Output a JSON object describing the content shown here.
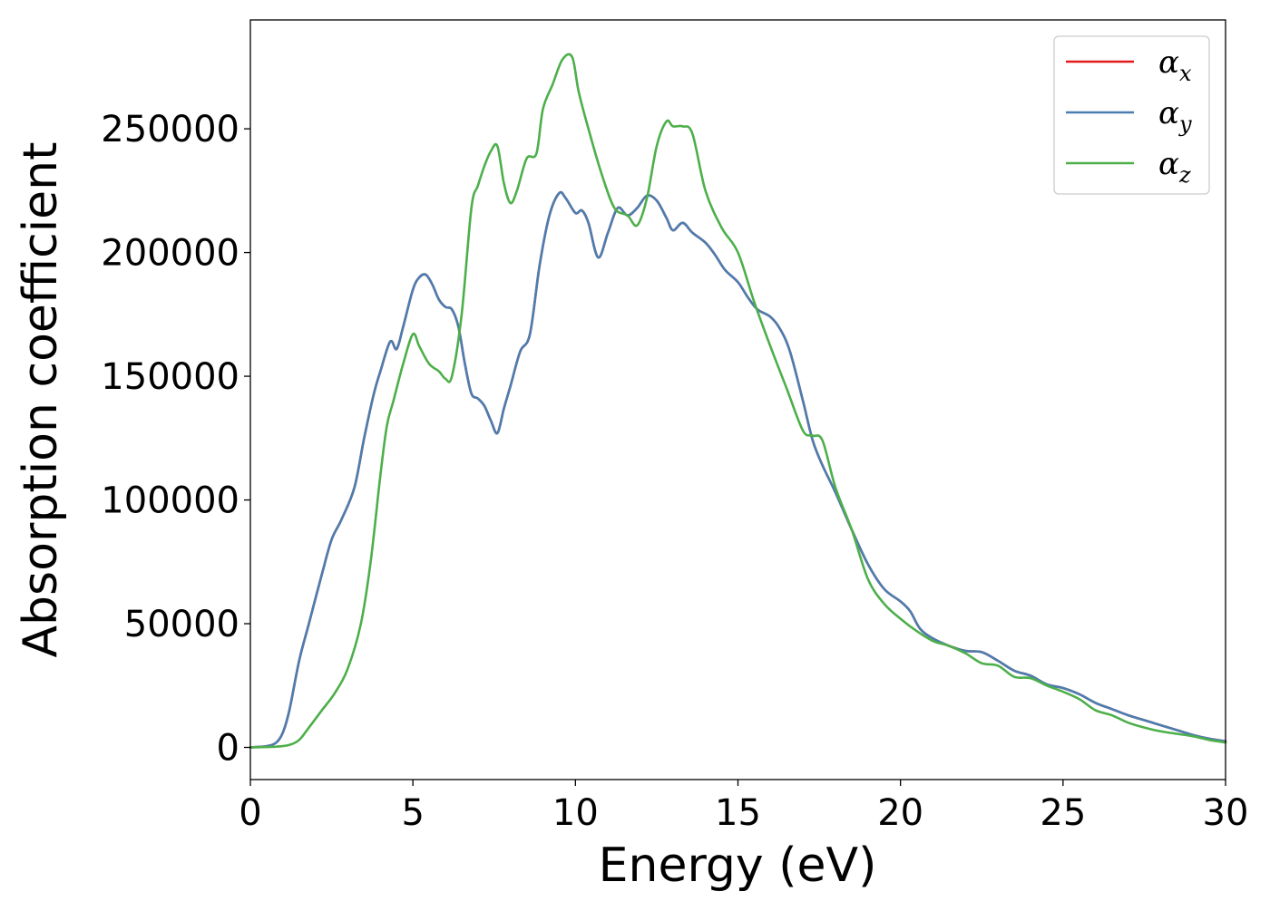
{
  "chart_data": {
    "type": "line",
    "xlabel": "Energy (eV)",
    "ylabel": "Absorption coefficient",
    "xlim": [
      0,
      30
    ],
    "ylim": [
      -13000,
      294000
    ],
    "xticks": [
      0,
      5,
      10,
      15,
      20,
      25,
      30
    ],
    "yticks": [
      0,
      50000,
      100000,
      150000,
      200000,
      250000
    ],
    "grid": false,
    "legend_position": "top-right",
    "series": [
      {
        "name": "αx",
        "legend_symbol": "α",
        "legend_subscript": "x",
        "color": "#e41a1c",
        "x": [
          0,
          0.5,
          0.8,
          1.0,
          1.2,
          1.5,
          1.8,
          2.2,
          2.5,
          2.8,
          3.2,
          3.5,
          3.8,
          4.0,
          4.3,
          4.5,
          4.7,
          5.0,
          5.2,
          5.4,
          5.6,
          5.8,
          6.0,
          6.2,
          6.4,
          6.6,
          6.8,
          7.0,
          7.2,
          7.4,
          7.6,
          7.8,
          8.0,
          8.3,
          8.6,
          8.9,
          9.2,
          9.5,
          9.7,
          10.0,
          10.2,
          10.4,
          10.7,
          11.0,
          11.3,
          11.6,
          11.9,
          12.2,
          12.5,
          12.8,
          13.0,
          13.3,
          13.6,
          14.0,
          14.3,
          14.6,
          15.0,
          15.3,
          15.6,
          16.0,
          16.3,
          16.6,
          17.0,
          17.3,
          17.6,
          18.0,
          18.5,
          19.0,
          19.5,
          20.0,
          20.3,
          20.6,
          21.0,
          21.5,
          22.0,
          22.5,
          23.0,
          23.5,
          24.0,
          24.5,
          25.0,
          25.5,
          26.0,
          26.5,
          27.0,
          27.5,
          28.0,
          28.5,
          29.0,
          29.5,
          30.0
        ],
        "y": [
          0,
          500,
          2000,
          6000,
          15000,
          35000,
          50000,
          70000,
          84000,
          92000,
          105000,
          125000,
          143000,
          152000,
          164000,
          161000,
          170000,
          185000,
          190000,
          191000,
          187000,
          181000,
          178000,
          177000,
          170000,
          155000,
          143000,
          141000,
          138000,
          132000,
          127000,
          137000,
          146000,
          160000,
          167000,
          195000,
          215000,
          224000,
          222000,
          216000,
          217000,
          212000,
          198000,
          208000,
          218000,
          215000,
          218000,
          223000,
          221000,
          214000,
          209000,
          212000,
          208000,
          204000,
          199000,
          193000,
          188000,
          182000,
          177000,
          174000,
          169000,
          160000,
          140000,
          124000,
          114000,
          103000,
          88000,
          74000,
          64000,
          59000,
          55000,
          48000,
          44000,
          41000,
          39000,
          38500,
          35000,
          31000,
          29000,
          25500,
          24000,
          21500,
          18000,
          15500,
          13000,
          11000,
          9000,
          7000,
          5000,
          3500,
          2500
        ]
      },
      {
        "name": "αy",
        "legend_symbol": "α",
        "legend_subscript": "y",
        "color": "#4a7eb0",
        "x": [
          0,
          0.5,
          0.8,
          1.0,
          1.2,
          1.5,
          1.8,
          2.2,
          2.5,
          2.8,
          3.2,
          3.5,
          3.8,
          4.0,
          4.3,
          4.5,
          4.7,
          5.0,
          5.2,
          5.4,
          5.6,
          5.8,
          6.0,
          6.2,
          6.4,
          6.6,
          6.8,
          7.0,
          7.2,
          7.4,
          7.6,
          7.8,
          8.0,
          8.3,
          8.6,
          8.9,
          9.2,
          9.5,
          9.7,
          10.0,
          10.2,
          10.4,
          10.7,
          11.0,
          11.3,
          11.6,
          11.9,
          12.2,
          12.5,
          12.8,
          13.0,
          13.3,
          13.6,
          14.0,
          14.3,
          14.6,
          15.0,
          15.3,
          15.6,
          16.0,
          16.3,
          16.6,
          17.0,
          17.3,
          17.6,
          18.0,
          18.5,
          19.0,
          19.5,
          20.0,
          20.3,
          20.6,
          21.0,
          21.5,
          22.0,
          22.5,
          23.0,
          23.5,
          24.0,
          24.5,
          25.0,
          25.5,
          26.0,
          26.5,
          27.0,
          27.5,
          28.0,
          28.5,
          29.0,
          29.5,
          30.0
        ],
        "y": [
          0,
          500,
          2000,
          6000,
          15000,
          35000,
          50000,
          70000,
          84000,
          92000,
          105000,
          125000,
          143000,
          152000,
          164000,
          161000,
          170000,
          185000,
          190000,
          191000,
          187000,
          181000,
          178000,
          177000,
          170000,
          155000,
          143000,
          141000,
          138000,
          132000,
          127000,
          137000,
          146000,
          160000,
          167000,
          195000,
          215000,
          224000,
          222000,
          216000,
          217000,
          212000,
          198000,
          208000,
          218000,
          215000,
          218000,
          223000,
          221000,
          214000,
          209000,
          212000,
          208000,
          204000,
          199000,
          193000,
          188000,
          182000,
          177000,
          174000,
          169000,
          160000,
          140000,
          124000,
          114000,
          103000,
          88000,
          74000,
          64000,
          59000,
          55000,
          48000,
          44000,
          41000,
          39000,
          38500,
          35000,
          31000,
          29000,
          25500,
          24000,
          21500,
          18000,
          15500,
          13000,
          11000,
          9000,
          7000,
          5000,
          3500,
          2500
        ]
      },
      {
        "name": "αz",
        "legend_symbol": "α",
        "legend_subscript": "z",
        "color": "#4daf4a",
        "x": [
          0,
          0.8,
          1.2,
          1.5,
          1.8,
          2.2,
          2.6,
          3.0,
          3.4,
          3.7,
          4.0,
          4.2,
          4.4,
          4.7,
          5.0,
          5.2,
          5.5,
          5.8,
          6.0,
          6.2,
          6.5,
          6.8,
          7.0,
          7.2,
          7.4,
          7.6,
          7.8,
          8.0,
          8.2,
          8.5,
          8.8,
          9.0,
          9.3,
          9.6,
          9.9,
          10.1,
          10.4,
          10.8,
          11.2,
          11.6,
          11.9,
          12.2,
          12.5,
          12.8,
          13.0,
          13.3,
          13.6,
          14.0,
          14.5,
          15.0,
          15.5,
          16.0,
          16.5,
          17.0,
          17.3,
          17.6,
          18.0,
          18.5,
          19.0,
          19.5,
          20.0,
          20.5,
          21.0,
          21.5,
          22.0,
          22.5,
          23.0,
          23.5,
          24.0,
          24.5,
          25.0,
          25.5,
          26.0,
          26.5,
          27.0,
          27.5,
          28.0,
          28.5,
          29.0,
          29.5,
          30.0
        ],
        "y": [
          0,
          300,
          1000,
          3000,
          8000,
          15000,
          22000,
          32000,
          50000,
          75000,
          110000,
          130000,
          140000,
          155000,
          167000,
          162000,
          155000,
          152000,
          149000,
          150000,
          175000,
          218000,
          227000,
          235000,
          241000,
          243000,
          228000,
          220000,
          225000,
          238000,
          240000,
          258000,
          268000,
          278000,
          279000,
          265000,
          250000,
          232000,
          218000,
          215000,
          211000,
          222000,
          243000,
          253000,
          251000,
          251000,
          248000,
          225000,
          210000,
          200000,
          180000,
          162000,
          145000,
          128000,
          126000,
          124000,
          105000,
          88000,
          68000,
          58000,
          52000,
          47000,
          43000,
          41000,
          38000,
          34000,
          33000,
          28500,
          28000,
          25000,
          22500,
          19500,
          15000,
          13000,
          10000,
          8000,
          6500,
          5500,
          4500,
          3000,
          2000
        ]
      }
    ]
  }
}
